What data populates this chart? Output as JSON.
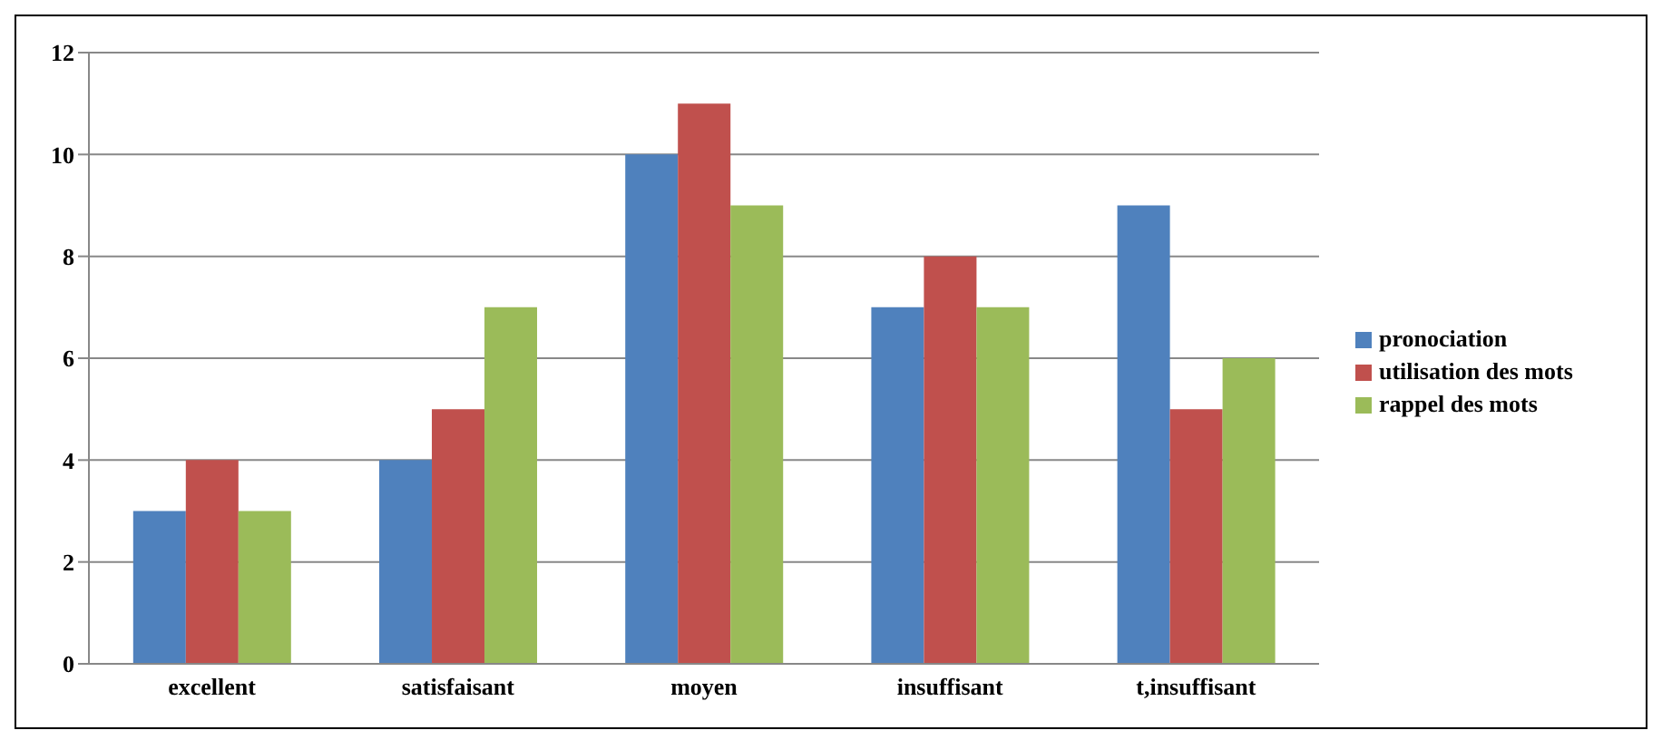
{
  "chart_data": {
    "type": "bar",
    "categories": [
      "excellent",
      "satisfaisant",
      "moyen",
      "insuffisant",
      "t,insuffisant"
    ],
    "series": [
      {
        "name": "pronociation",
        "color": "#4f81bd",
        "values": [
          3,
          4,
          10,
          7,
          9
        ]
      },
      {
        "name": "utilisation des mots",
        "color": "#c0504d",
        "values": [
          4,
          5,
          11,
          8,
          5
        ]
      },
      {
        "name": "rappel des mots",
        "color": "#9bbb59",
        "values": [
          3,
          7,
          9,
          7,
          6
        ]
      }
    ],
    "ylim": [
      0,
      12
    ],
    "yticks": [
      0,
      2,
      4,
      6,
      8,
      10,
      12
    ],
    "grid": "y",
    "legend": "right"
  }
}
